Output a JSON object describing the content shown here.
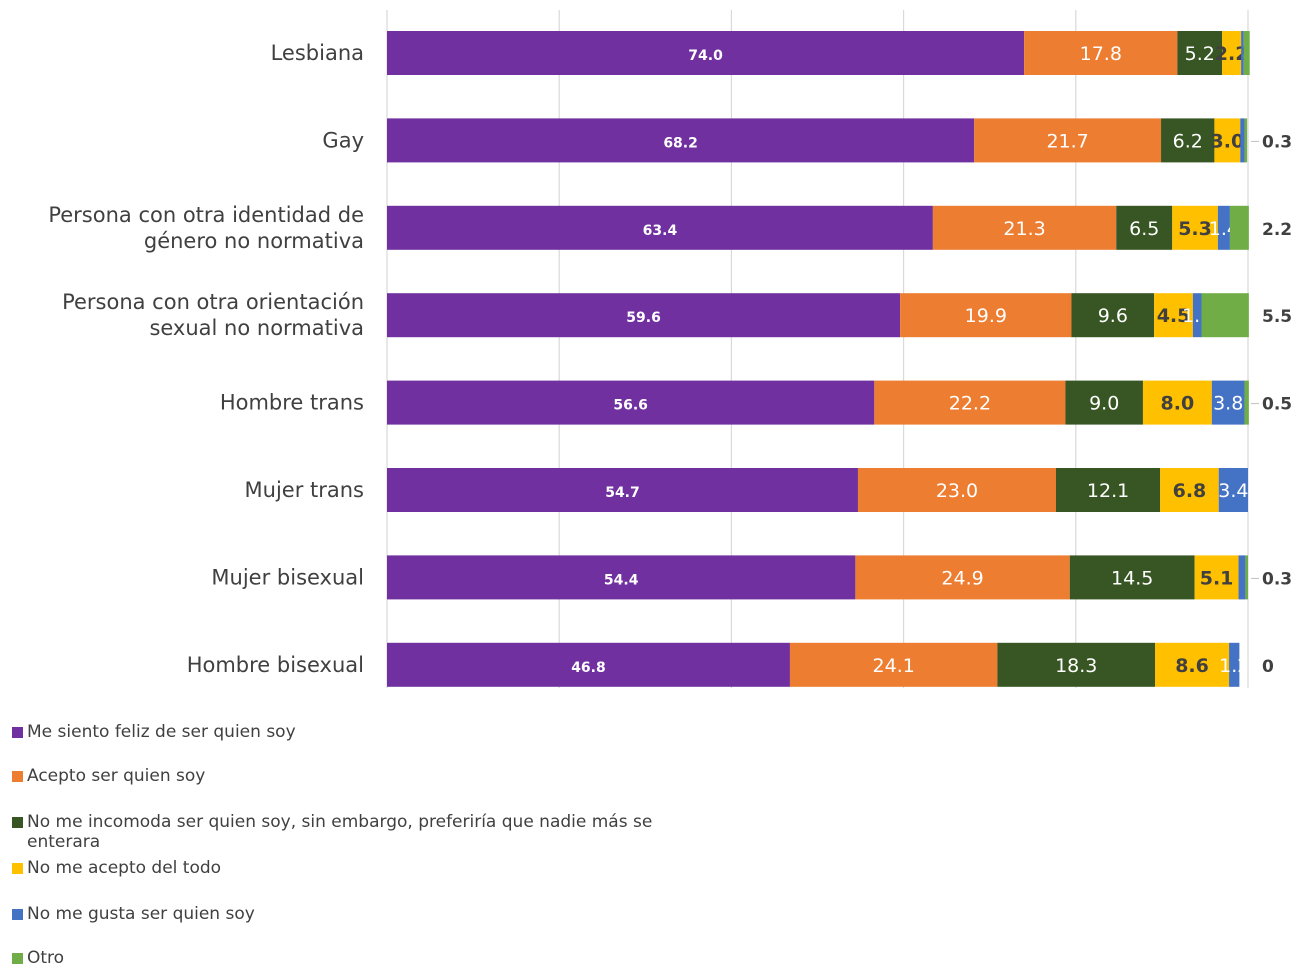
{
  "chart_data": {
    "type": "bar",
    "orientation": "horizontal",
    "stacked": true,
    "categories": [
      "Lesbiana",
      "Gay",
      "Persona con otra identidad de género no normativa",
      "Persona con otra orientación sexual no normativa",
      "Hombre trans",
      "Mujer trans",
      "Mujer bisexual",
      "Hombre bisexual"
    ],
    "category_lines": [
      [
        "Lesbiana"
      ],
      [
        "Gay"
      ],
      [
        "Persona con otra identidad de",
        "género no normativa"
      ],
      [
        "Persona con otra orientación",
        "sexual no normativa"
      ],
      [
        "Hombre trans"
      ],
      [
        "Mujer trans"
      ],
      [
        "Mujer bisexual"
      ],
      [
        "Hombre bisexual"
      ]
    ],
    "series": [
      {
        "name": "Me siento feliz de ser quien soy",
        "color": "#7030a0",
        "values": [
          74.0,
          68.2,
          63.4,
          59.6,
          56.6,
          54.7,
          54.4,
          46.8
        ],
        "labels": [
          "74.0",
          "68.2",
          "63.4",
          "59.6",
          "56.6",
          "54.7",
          "54.4",
          "46.8"
        ]
      },
      {
        "name": "Acepto ser quien soy",
        "color": "#ed7d31",
        "values": [
          17.8,
          21.7,
          21.3,
          19.9,
          22.2,
          23.0,
          24.9,
          24.1
        ],
        "labels": [
          "17.8",
          "21.7",
          "21.3",
          "19.9",
          "22.2",
          "23.0",
          "24.9",
          "24.1"
        ]
      },
      {
        "name": "No me incomoda ser quien soy, sin embargo, preferiría que nadie más se enterara",
        "color": "#375623",
        "values": [
          5.2,
          6.2,
          6.5,
          9.6,
          9.0,
          12.1,
          14.5,
          18.3
        ],
        "labels": [
          "5.2",
          "6.2",
          "6.5",
          "9.6",
          "9.0",
          "12.1",
          "14.5",
          "18.3"
        ]
      },
      {
        "name": "No me acepto del todo",
        "color": "#ffc000",
        "values": [
          2.2,
          3.0,
          5.3,
          4.5,
          8.0,
          6.8,
          5.1,
          8.6
        ],
        "labels": [
          "2.2",
          "3.0",
          "5.3",
          "4.5",
          "8.0",
          "6.8",
          "5.1",
          "8.6"
        ]
      },
      {
        "name": "No me gusta ser quien soy",
        "color": "#4472c4",
        "values": [
          0.3,
          0.5,
          1.4,
          1.0,
          3.8,
          3.4,
          0.8,
          1.2
        ],
        "labels": [
          "",
          "",
          "1.4",
          "1.0",
          "3.8",
          "3.4",
          "",
          "1.2"
        ]
      },
      {
        "name": "Otro",
        "color": "#70ad47",
        "values": [
          0.7,
          0.3,
          2.2,
          5.5,
          0.5,
          0,
          0.3,
          0
        ],
        "labels": [
          "",
          "0.3",
          "2.2",
          "5.5",
          "0.5",
          "",
          "0.3",
          "0"
        ]
      }
    ],
    "x_ticks": [
      "0",
      "20",
      "40",
      "60",
      "80",
      "100"
    ],
    "xlim": [
      0,
      100
    ],
    "grid": "vertical",
    "legend": "bottom-left",
    "title": "",
    "xlabel": "",
    "ylabel": ""
  }
}
